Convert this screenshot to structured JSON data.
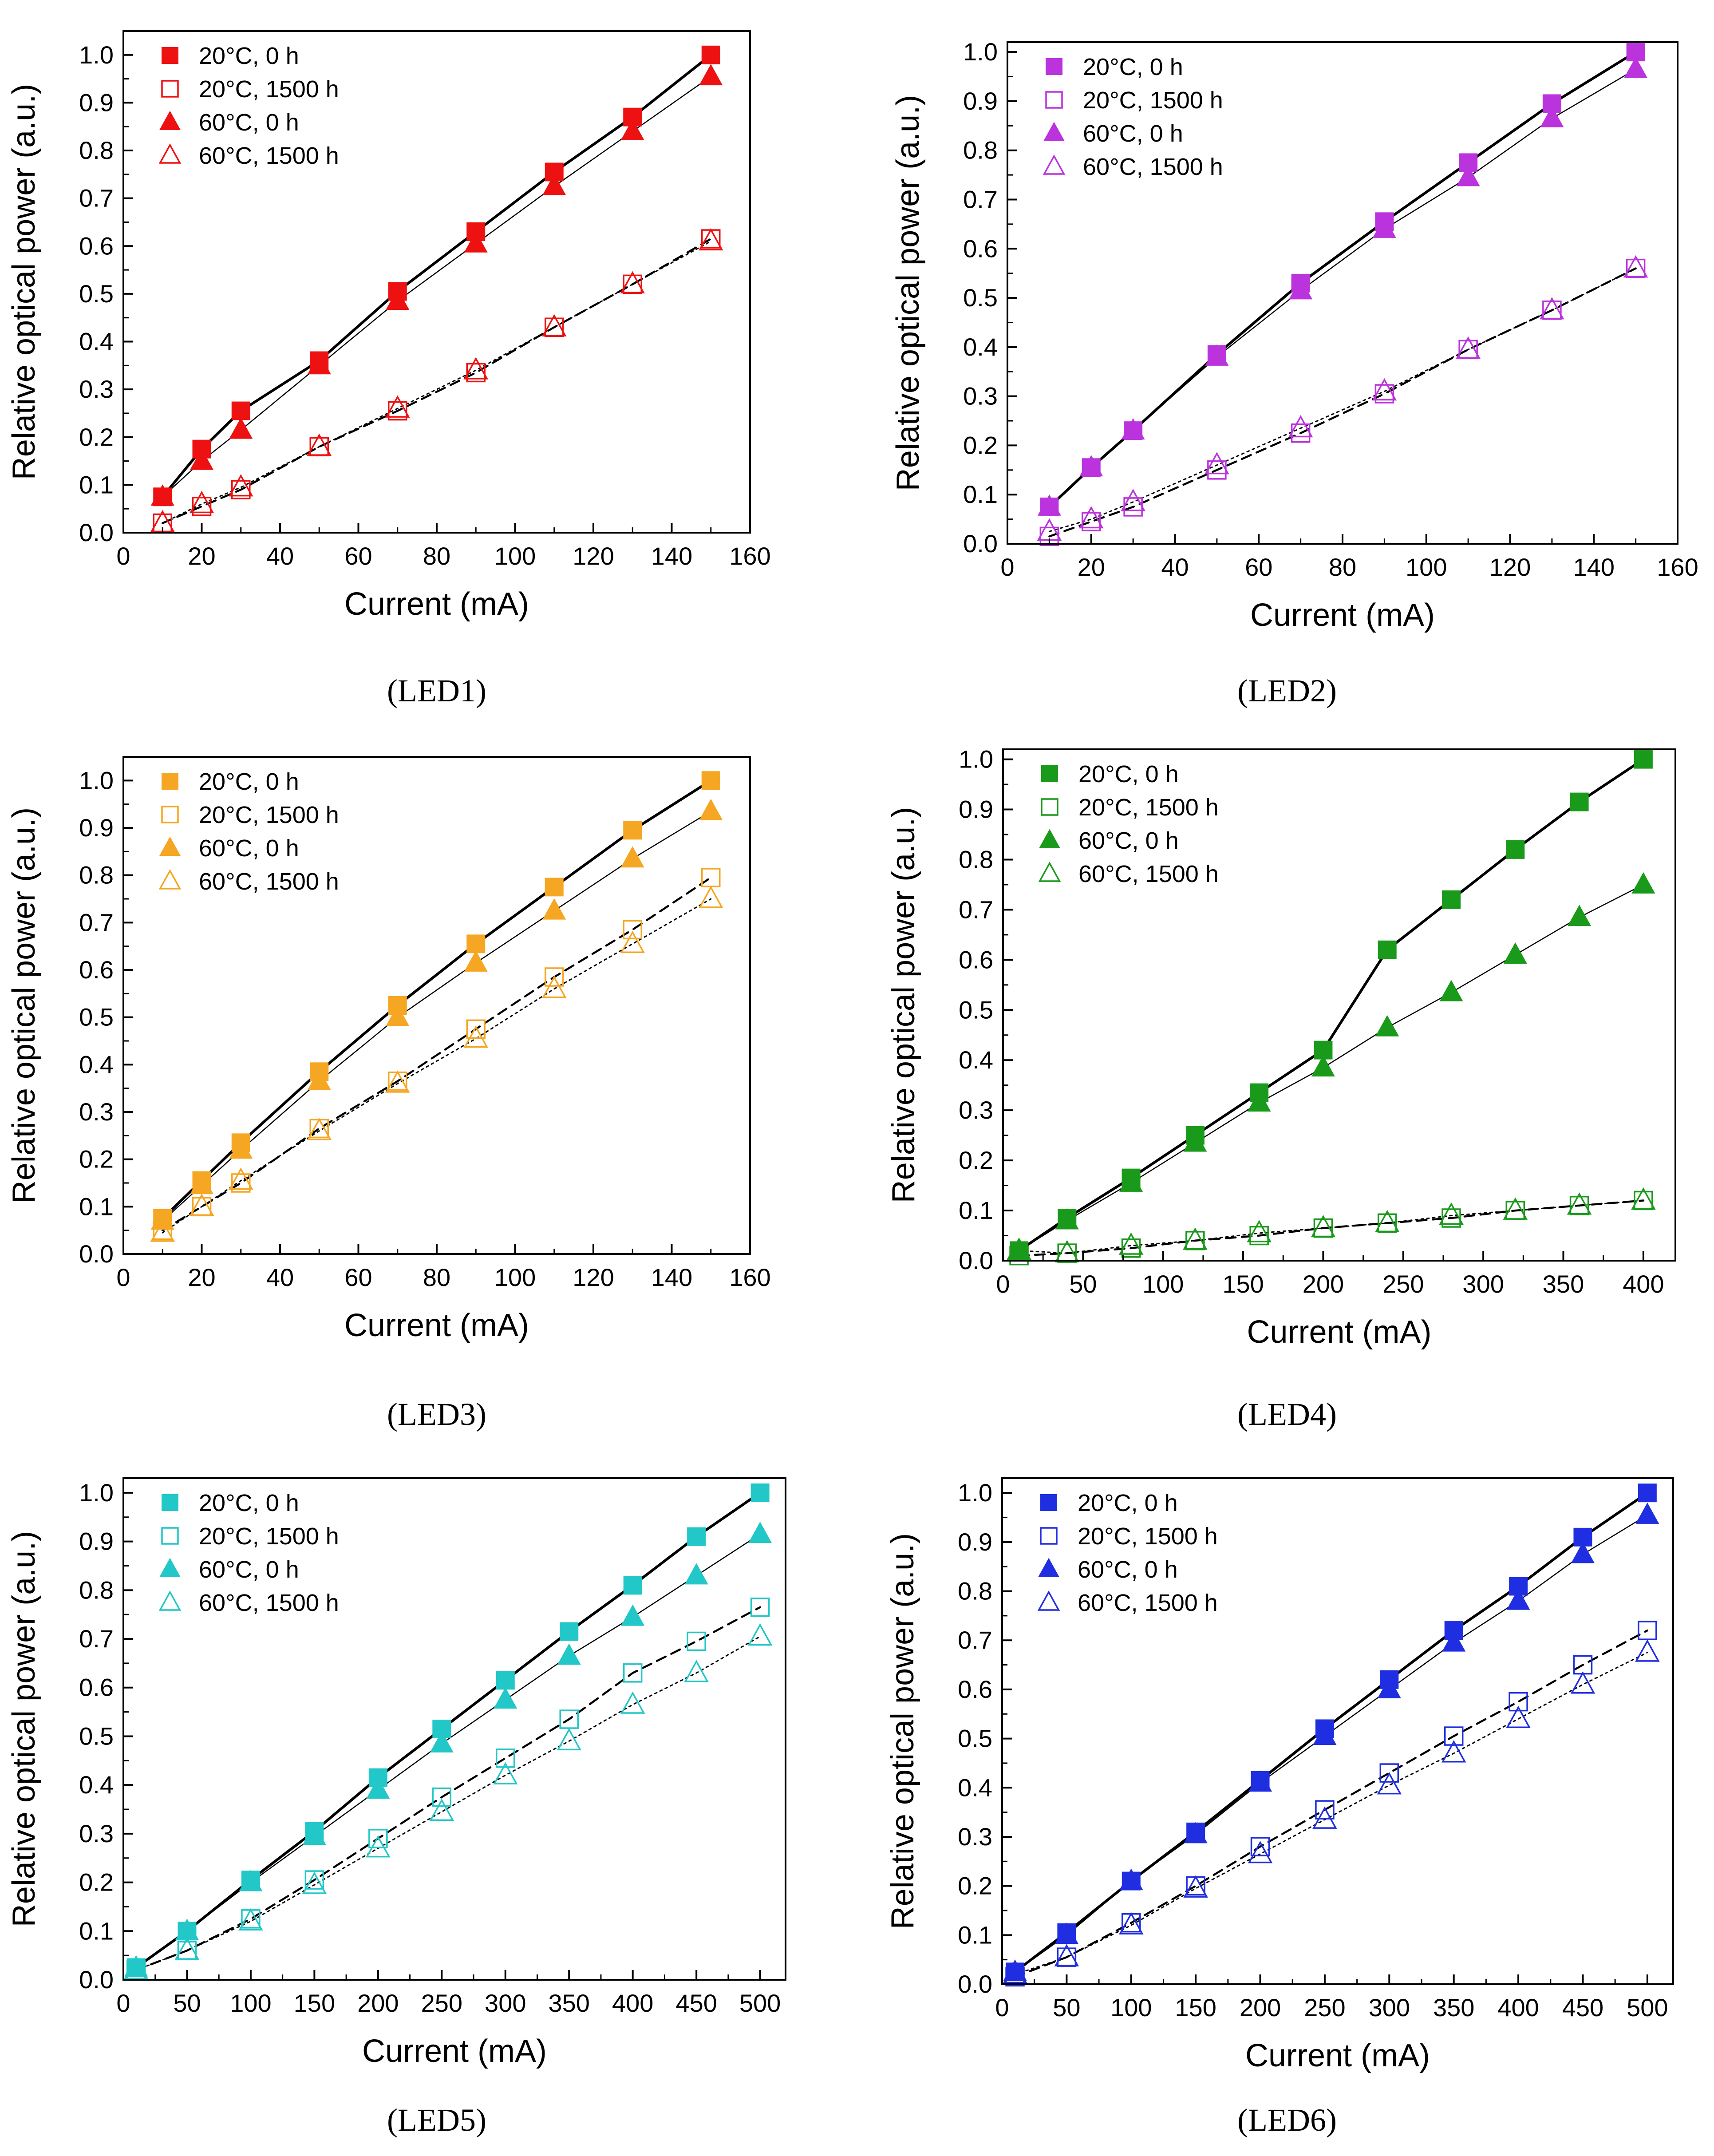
{
  "chart_data": [
    {
      "type": "scatter",
      "caption": "(LED1)",
      "xlabel": "Current (mA)",
      "ylabel": "Relative optical power (a.u.)",
      "xlim": [
        0,
        160
      ],
      "ylim": [
        0,
        1.05
      ],
      "xticks": [
        0,
        20,
        40,
        60,
        80,
        100,
        120,
        140,
        160
      ],
      "yticks": [
        0.0,
        0.1,
        0.2,
        0.3,
        0.4,
        0.5,
        0.6,
        0.7,
        0.8,
        0.9,
        1.0
      ],
      "color": "#ee1111",
      "x": [
        10,
        20,
        30,
        50,
        70,
        90,
        110,
        130,
        150
      ],
      "legend_position": "top-left",
      "series": [
        {
          "name": "20°C, 0 h",
          "marker": "square-filled",
          "line": "solid-thick",
          "values": [
            0.075,
            0.175,
            0.255,
            0.36,
            0.505,
            0.63,
            0.755,
            0.87,
            1.0
          ]
        },
        {
          "name": "20°C, 1500 h",
          "marker": "square-open",
          "line": "dashed",
          "values": [
            0.02,
            0.055,
            0.09,
            0.18,
            0.255,
            0.335,
            0.43,
            0.52,
            0.615
          ]
        },
        {
          "name": "60°C, 0 h",
          "marker": "triangle-filled",
          "line": "solid-thin",
          "values": [
            0.075,
            0.15,
            0.215,
            0.35,
            0.485,
            0.605,
            0.725,
            0.84,
            0.955
          ]
        },
        {
          "name": "60°C, 1500 h",
          "marker": "triangle-open",
          "line": "dotted",
          "values": [
            0.02,
            0.06,
            0.095,
            0.18,
            0.26,
            0.34,
            0.43,
            0.52,
            0.61
          ]
        }
      ]
    },
    {
      "type": "scatter",
      "caption": "(LED2)",
      "xlabel": "Current (mA)",
      "ylabel": "Relative optical power (a.u.)",
      "xlim": [
        0,
        160
      ],
      "ylim": [
        0,
        1.02
      ],
      "xticks": [
        0,
        20,
        40,
        60,
        80,
        100,
        120,
        140,
        160
      ],
      "yticks": [
        0.0,
        0.1,
        0.2,
        0.3,
        0.4,
        0.5,
        0.6,
        0.7,
        0.8,
        0.9,
        1.0
      ],
      "color": "#bb33dd",
      "x": [
        10,
        20,
        30,
        50,
        70,
        90,
        110,
        130,
        150
      ],
      "legend_position": "top-left",
      "series": [
        {
          "name": "20°C, 0 h",
          "marker": "square-filled",
          "line": "solid-thick",
          "values": [
            0.075,
            0.155,
            0.23,
            0.385,
            0.53,
            0.655,
            0.775,
            0.895,
            1.0
          ]
        },
        {
          "name": "20°C, 1500 h",
          "marker": "square-open",
          "line": "dashed",
          "values": [
            0.015,
            0.045,
            0.075,
            0.15,
            0.225,
            0.305,
            0.395,
            0.475,
            0.56
          ]
        },
        {
          "name": "60°C, 0 h",
          "marker": "triangle-filled",
          "line": "solid-thin",
          "values": [
            0.075,
            0.155,
            0.23,
            0.38,
            0.515,
            0.64,
            0.745,
            0.865,
            0.965
          ]
        },
        {
          "name": "60°C, 1500 h",
          "marker": "triangle-open",
          "line": "dotted",
          "values": [
            0.025,
            0.05,
            0.085,
            0.16,
            0.235,
            0.31,
            0.395,
            0.475,
            0.56
          ]
        }
      ]
    },
    {
      "type": "scatter",
      "caption": "(LED3)",
      "xlabel": "Current (mA)",
      "ylabel": "Relative optical power (a.u.)",
      "xlim": [
        0,
        160
      ],
      "ylim": [
        0,
        1.05
      ],
      "xticks": [
        0,
        20,
        40,
        60,
        80,
        100,
        120,
        140,
        160
      ],
      "yticks": [
        0.0,
        0.1,
        0.2,
        0.3,
        0.4,
        0.5,
        0.6,
        0.7,
        0.8,
        0.9,
        1.0
      ],
      "color": "#f5a623",
      "x": [
        10,
        20,
        30,
        50,
        70,
        90,
        110,
        130,
        150
      ],
      "legend_position": "top-left",
      "series": [
        {
          "name": "20°C, 0 h",
          "marker": "square-filled",
          "line": "solid-thick",
          "values": [
            0.075,
            0.155,
            0.235,
            0.385,
            0.525,
            0.655,
            0.775,
            0.895,
            1.0
          ]
        },
        {
          "name": "20°C, 1500 h",
          "marker": "square-open",
          "line": "dashed",
          "values": [
            0.05,
            0.1,
            0.15,
            0.265,
            0.365,
            0.475,
            0.585,
            0.685,
            0.795
          ]
        },
        {
          "name": "60°C, 0 h",
          "marker": "triangle-filled",
          "line": "solid-thin",
          "values": [
            0.07,
            0.145,
            0.22,
            0.365,
            0.5,
            0.615,
            0.725,
            0.835,
            0.935
          ]
        },
        {
          "name": "60°C, 1500 h",
          "marker": "triangle-open",
          "line": "dotted",
          "values": [
            0.045,
            0.1,
            0.155,
            0.26,
            0.36,
            0.455,
            0.56,
            0.655,
            0.75
          ]
        }
      ]
    },
    {
      "type": "scatter",
      "caption": "(LED4)",
      "xlabel": "Current (mA)",
      "ylabel": "Relative optical power (a.u.)",
      "xlim": [
        0,
        420
      ],
      "ylim": [
        0,
        1.02
      ],
      "xticks": [
        0,
        50,
        100,
        150,
        200,
        250,
        300,
        350,
        400
      ],
      "yticks": [
        0.0,
        0.1,
        0.2,
        0.3,
        0.4,
        0.5,
        0.6,
        0.7,
        0.8,
        0.9,
        1.0
      ],
      "color": "#1a9a1a",
      "x": [
        10,
        40,
        80,
        120,
        160,
        200,
        240,
        280,
        320,
        360,
        400
      ],
      "legend_position": "top-left",
      "series": [
        {
          "name": "20°C, 0 h",
          "marker": "square-filled",
          "line": "solid-thick",
          "values": [
            0.02,
            0.085,
            0.165,
            0.25,
            0.335,
            0.42,
            0.62,
            0.72,
            0.82,
            0.915,
            1.0
          ]
        },
        {
          "name": "20°C, 1500 h",
          "marker": "square-open",
          "line": "dashed",
          "values": [
            0.01,
            0.015,
            0.025,
            0.04,
            0.05,
            0.065,
            0.075,
            0.085,
            0.1,
            0.11,
            0.12
          ]
        },
        {
          "name": "60°C, 0 h",
          "marker": "triangle-filled",
          "line": "solid-thin",
          "values": [
            0.02,
            0.08,
            0.155,
            0.235,
            0.315,
            0.385,
            0.465,
            0.535,
            0.61,
            0.685,
            0.75
          ]
        },
        {
          "name": "60°C, 1500 h",
          "marker": "triangle-open",
          "line": "dotted",
          "values": [
            0.02,
            0.015,
            0.03,
            0.04,
            0.055,
            0.065,
            0.075,
            0.09,
            0.1,
            0.11,
            0.12
          ]
        }
      ]
    },
    {
      "type": "scatter",
      "caption": "(LED5)",
      "xlabel": "Current (mA)",
      "ylabel": "Relative optical power (a.u.)",
      "xlim": [
        0,
        520
      ],
      "ylim": [
        0,
        1.03
      ],
      "xticks": [
        0,
        50,
        100,
        150,
        200,
        250,
        300,
        350,
        400,
        450,
        500
      ],
      "yticks": [
        0.0,
        0.1,
        0.2,
        0.3,
        0.4,
        0.5,
        0.6,
        0.7,
        0.8,
        0.9,
        1.0
      ],
      "color": "#22c7c7",
      "x": [
        10,
        50,
        100,
        150,
        200,
        250,
        300,
        350,
        400,
        450,
        500
      ],
      "legend_position": "top-left",
      "series": [
        {
          "name": "20°C, 0 h",
          "marker": "square-filled",
          "line": "solid-thick",
          "values": [
            0.025,
            0.1,
            0.205,
            0.305,
            0.415,
            0.515,
            0.615,
            0.715,
            0.81,
            0.91,
            1.0
          ]
        },
        {
          "name": "20°C, 1500 h",
          "marker": "square-open",
          "line": "dashed",
          "values": [
            0.02,
            0.06,
            0.125,
            0.205,
            0.29,
            0.375,
            0.455,
            0.535,
            0.63,
            0.695,
            0.765
          ]
        },
        {
          "name": "60°C, 0 h",
          "marker": "triangle-filled",
          "line": "solid-thin",
          "values": [
            0.025,
            0.1,
            0.2,
            0.295,
            0.39,
            0.485,
            0.575,
            0.665,
            0.745,
            0.83,
            0.915
          ]
        },
        {
          "name": "60°C, 1500 h",
          "marker": "triangle-open",
          "line": "dotted",
          "values": [
            0.02,
            0.06,
            0.12,
            0.195,
            0.27,
            0.345,
            0.42,
            0.49,
            0.565,
            0.63,
            0.705
          ]
        }
      ]
    },
    {
      "type": "scatter",
      "caption": "(LED6)",
      "xlabel": "Current (mA)",
      "ylabel": "Relative optical power (a.u.)",
      "xlim": [
        0,
        520
      ],
      "ylim": [
        0,
        1.03
      ],
      "xticks": [
        0,
        50,
        100,
        150,
        200,
        250,
        300,
        350,
        400,
        450,
        500
      ],
      "yticks": [
        0.0,
        0.1,
        0.2,
        0.3,
        0.4,
        0.5,
        0.6,
        0.7,
        0.8,
        0.9,
        1.0
      ],
      "color": "#1f2ee0",
      "x": [
        10,
        50,
        100,
        150,
        200,
        250,
        300,
        350,
        400,
        450,
        500
      ],
      "legend_position": "top-left",
      "series": [
        {
          "name": "20°C, 0 h",
          "marker": "square-filled",
          "line": "solid-thick",
          "values": [
            0.025,
            0.105,
            0.21,
            0.31,
            0.415,
            0.52,
            0.62,
            0.72,
            0.81,
            0.91,
            1.0
          ]
        },
        {
          "name": "20°C, 1500 h",
          "marker": "square-open",
          "line": "dashed",
          "values": [
            0.015,
            0.055,
            0.125,
            0.2,
            0.28,
            0.355,
            0.43,
            0.505,
            0.575,
            0.65,
            0.72
          ]
        },
        {
          "name": "60°C, 0 h",
          "marker": "triangle-filled",
          "line": "solid-thin",
          "values": [
            0.025,
            0.1,
            0.21,
            0.305,
            0.41,
            0.505,
            0.6,
            0.695,
            0.78,
            0.875,
            0.955
          ]
        },
        {
          "name": "60°C, 1500 h",
          "marker": "triangle-open",
          "line": "dotted",
          "values": [
            0.02,
            0.055,
            0.12,
            0.195,
            0.265,
            0.335,
            0.405,
            0.47,
            0.54,
            0.61,
            0.675
          ]
        }
      ]
    }
  ]
}
